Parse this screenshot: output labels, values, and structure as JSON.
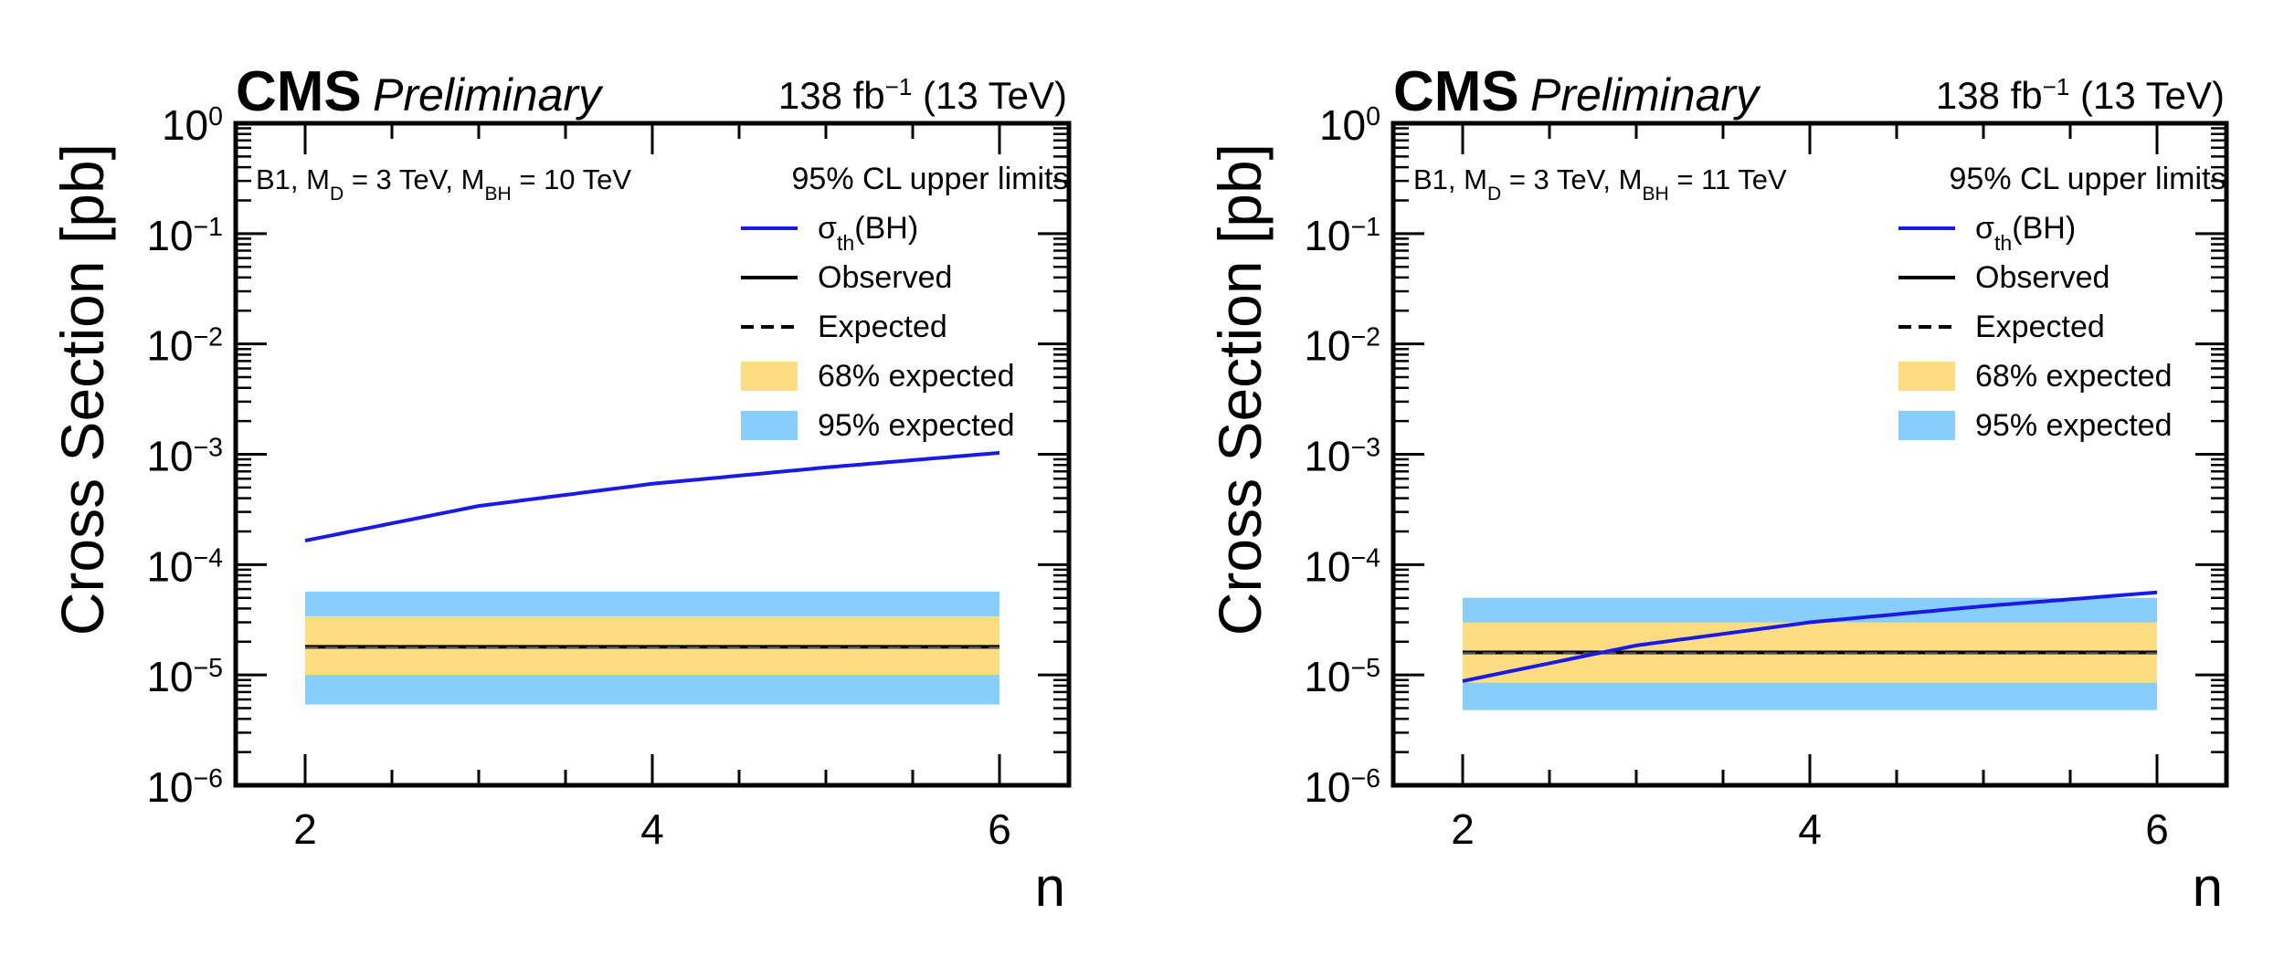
{
  "chart_data": [
    {
      "type": "line",
      "title": "CMS Preliminary",
      "cms_label": "CMS",
      "prelim_label": "Preliminary",
      "lumi": {
        "base": "138 fb",
        "exp": "−1",
        "energy": "(13 TeV)"
      },
      "info": {
        "pre": "B1, M",
        "sub1": "D",
        "mid": " = 3 TeV, M",
        "sub2": "BH",
        "post": " = 10 TeV"
      },
      "xlabel": "n",
      "ylabel": "Cross Section [pb]",
      "xlim": [
        1.6,
        6.4
      ],
      "ylim": [
        1e-06,
        1
      ],
      "yscale": "log",
      "x_ticks": [
        "2",
        "4",
        "6"
      ],
      "y_ticks": [
        {
          "base": "10",
          "exp": "0"
        },
        {
          "base": "10",
          "exp": "−1"
        },
        {
          "base": "10",
          "exp": "−2"
        },
        {
          "base": "10",
          "exp": "−3"
        },
        {
          "base": "10",
          "exp": "−4"
        },
        {
          "base": "10",
          "exp": "−5"
        },
        {
          "base": "10",
          "exp": "−6"
        }
      ],
      "legend": {
        "header": "95% CL upper limits",
        "theory": {
          "pre": "σ",
          "sub": "th",
          "post": "(BH)"
        },
        "observed": "Observed",
        "expected": "Expected",
        "band68": "68% expected",
        "band95": "95% expected"
      },
      "series": [
        {
          "name": "theory",
          "x": [
            2,
            3,
            4,
            5,
            6
          ],
          "values": [
            0.000165,
            0.00034,
            0.00054,
            0.00076,
            0.00103
          ]
        },
        {
          "name": "observed",
          "x": [
            2,
            6
          ],
          "values": [
            1.8e-05,
            1.8e-05
          ]
        },
        {
          "name": "expected",
          "x": [
            2,
            6
          ],
          "values": [
            1.8e-05,
            1.8e-05
          ]
        },
        {
          "name": "band68",
          "x": [
            2,
            6
          ],
          "low": 1e-05,
          "high": 3.4e-05
        },
        {
          "name": "band95",
          "x": [
            2,
            6
          ],
          "low": 5.4e-06,
          "high": 5.7e-05
        }
      ]
    },
    {
      "type": "line",
      "title": "CMS Preliminary",
      "cms_label": "CMS",
      "prelim_label": "Preliminary",
      "lumi": {
        "base": "138 fb",
        "exp": "−1",
        "energy": "(13 TeV)"
      },
      "info": {
        "pre": "B1, M",
        "sub1": "D",
        "mid": " = 3 TeV, M",
        "sub2": "BH",
        "post": " = 11 TeV"
      },
      "xlabel": "n",
      "ylabel": "Cross Section [pb]",
      "xlim": [
        1.6,
        6.4
      ],
      "ylim": [
        1e-06,
        1
      ],
      "yscale": "log",
      "x_ticks": [
        "2",
        "4",
        "6"
      ],
      "y_ticks": [
        {
          "base": "10",
          "exp": "0"
        },
        {
          "base": "10",
          "exp": "−1"
        },
        {
          "base": "10",
          "exp": "−2"
        },
        {
          "base": "10",
          "exp": "−3"
        },
        {
          "base": "10",
          "exp": "−4"
        },
        {
          "base": "10",
          "exp": "−5"
        },
        {
          "base": "10",
          "exp": "−6"
        }
      ],
      "legend": {
        "header": "95% CL upper limits",
        "theory": {
          "pre": "σ",
          "sub": "th",
          "post": "(BH)"
        },
        "observed": "Observed",
        "expected": "Expected",
        "band68": "68% expected",
        "band95": "95% expected"
      },
      "series": [
        {
          "name": "theory",
          "x": [
            2,
            3,
            4,
            5,
            6
          ],
          "values": [
            8.8e-06,
            1.85e-05,
            3e-05,
            4.2e-05,
            5.6e-05
          ]
        },
        {
          "name": "observed",
          "x": [
            2,
            6
          ],
          "values": [
            1.6e-05,
            1.6e-05
          ]
        },
        {
          "name": "expected",
          "x": [
            2,
            6
          ],
          "values": [
            1.6e-05,
            1.6e-05
          ]
        },
        {
          "name": "band68",
          "x": [
            2,
            6
          ],
          "low": 8.5e-06,
          "high": 3e-05
        },
        {
          "name": "band95",
          "x": [
            2,
            6
          ],
          "low": 4.8e-06,
          "high": 5e-05
        }
      ]
    }
  ],
  "colors": {
    "theory": "#1a1ae6",
    "observed": "#000000",
    "expected": "#000000",
    "band68": "#fddc82",
    "band95": "#87cefa",
    "axis": "#000000"
  }
}
